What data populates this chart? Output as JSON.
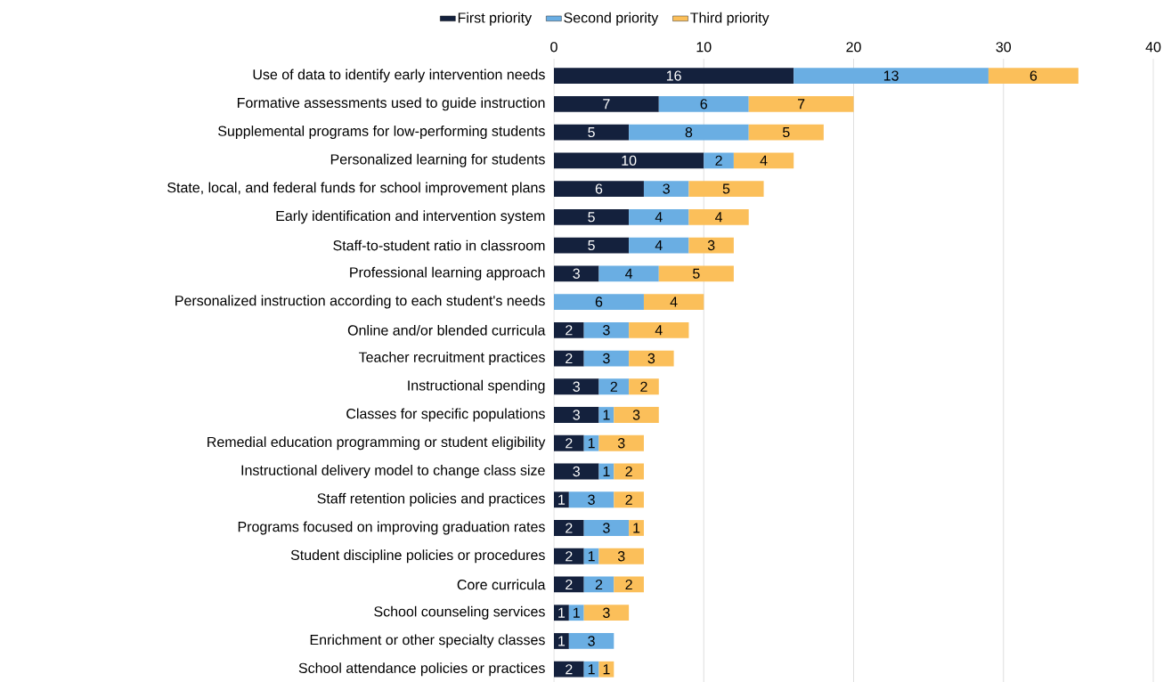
{
  "chart_data": {
    "type": "bar",
    "orientation": "horizontal",
    "stacked": true,
    "data_labels": true,
    "grid": "x",
    "legend": "top",
    "categories": [
      "Use of data to identify early intervention needs",
      "Formative assessments used to guide instruction",
      "Supplemental programs for low-performing students",
      "Personalized learning for students",
      "State, local, and federal funds for school improvement plans",
      "Early identification and intervention system",
      "Staff-to-student ratio in classroom",
      "Professional learning approach",
      "Personalized instruction according to each student's needs",
      "Online and/or blended curricula",
      "Teacher recruitment practices",
      "Instructional spending",
      "Classes for specific populations",
      "Remedial education programming or student eligibility",
      "Instructional delivery model to change class size",
      "Staff retention policies and practices",
      "Programs focused on improving graduation rates",
      "Student discipline policies or procedures",
      "Core curricula",
      "School counseling services",
      "Enrichment or other specialty classes",
      "School attendance policies or practices"
    ],
    "series": [
      {
        "name": "First priority",
        "color": "#14213d",
        "values": [
          16,
          7,
          5,
          10,
          6,
          5,
          5,
          3,
          null,
          2,
          2,
          3,
          3,
          2,
          3,
          1,
          2,
          2,
          2,
          1,
          1,
          2
        ]
      },
      {
        "name": "Second priority",
        "color": "#6aaee3",
        "values": [
          13,
          6,
          8,
          2,
          3,
          4,
          4,
          4,
          6,
          3,
          3,
          2,
          1,
          1,
          1,
          3,
          3,
          1,
          2,
          1,
          3,
          1
        ]
      },
      {
        "name": "Third priority",
        "color": "#fbbf5a",
        "values": [
          6,
          7,
          5,
          4,
          5,
          4,
          3,
          5,
          4,
          4,
          3,
          2,
          3,
          3,
          2,
          2,
          1,
          3,
          2,
          3,
          null,
          1
        ]
      }
    ],
    "xlim": [
      0,
      40
    ],
    "xticks": [
      0,
      10,
      20,
      30,
      40
    ]
  }
}
